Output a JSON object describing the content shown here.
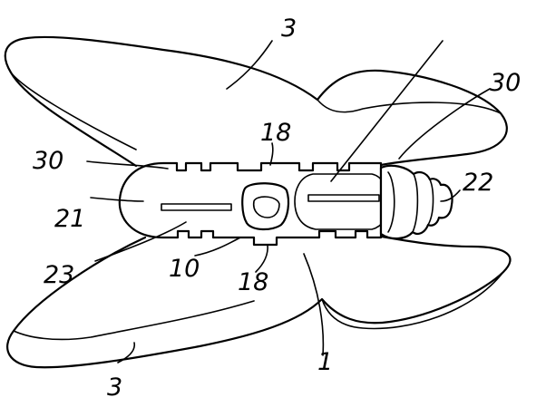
{
  "labels": {
    "wing_top": "3",
    "wing_bottom": "3",
    "notch_top": "18",
    "notch_bottom": "18",
    "barb_left": "30",
    "barb_right": "30",
    "cap": "22",
    "head": "21",
    "slot": "23",
    "center": "10",
    "body": "1"
  }
}
